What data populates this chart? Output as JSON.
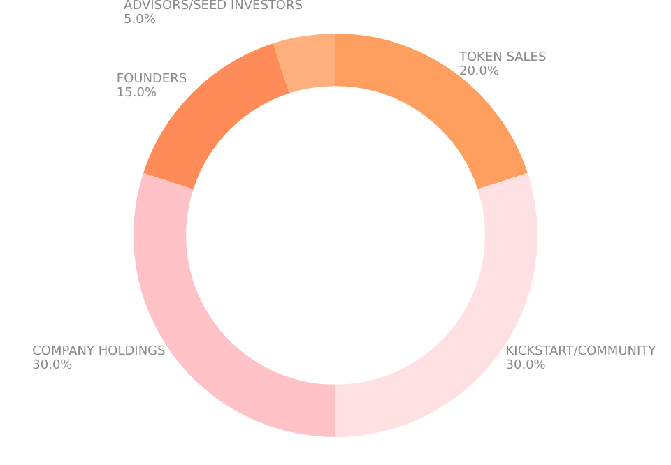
{
  "chart_data": {
    "type": "donut",
    "categories": [
      "TOKEN SALES",
      "KICKSTART/COMMUNITY",
      "COMPANY HOLDINGS",
      "FOUNDERS",
      "ADVISORS/SEED INVESTORS"
    ],
    "values": [
      20,
      30,
      30,
      15,
      5
    ],
    "value_labels": [
      "20.0%",
      "30.0%",
      "30.0%",
      "15.0%",
      "5.0%"
    ],
    "colors": [
      "#ff9f5f",
      "#ffe0e3",
      "#ffc2c6",
      "#ff8c58",
      "#ffb07c"
    ],
    "legend": false
  }
}
